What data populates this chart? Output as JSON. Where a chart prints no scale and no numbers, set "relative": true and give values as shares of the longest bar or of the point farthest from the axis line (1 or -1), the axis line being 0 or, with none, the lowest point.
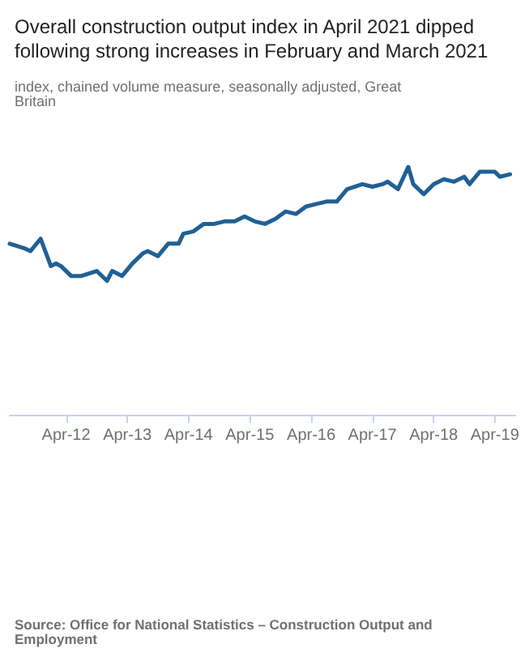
{
  "chart_data": {
    "type": "line",
    "title": "Overall construction output index in April 2021 dipped following strong increases in February and March 2021",
    "subtitle": "index, chained volume measure, seasonally adjusted, Great Britain",
    "annotations": [
      "Source: Office for National Statistics – Construction Output and Employment"
    ],
    "relative": true,
    "marker": "none",
    "line_style": "solid",
    "x": [
      "2011-05",
      "2011-08",
      "2011-09",
      "2011-11",
      "2012-01",
      "2012-02",
      "2012-03",
      "2012-05",
      "2012-07",
      "2012-10",
      "2012-12",
      "2013-01",
      "2013-03",
      "2013-05",
      "2013-07",
      "2013-08",
      "2013-10",
      "2013-12",
      "2014-02",
      "2014-03",
      "2014-05",
      "2014-07",
      "2014-09",
      "2014-11",
      "2015-01",
      "2015-03",
      "2015-05",
      "2015-07",
      "2015-09",
      "2015-11",
      "2016-01",
      "2016-03",
      "2016-05",
      "2016-07",
      "2016-09",
      "2016-11",
      "2017-02",
      "2017-04",
      "2017-06",
      "2017-07",
      "2017-09",
      "2017-11",
      "2017-12",
      "2018-02",
      "2018-04",
      "2018-06",
      "2018-08",
      "2018-10",
      "2018-11",
      "2019-01",
      "2019-03",
      "2019-04",
      "2019-05",
      "2019-07"
    ],
    "series": [
      {
        "color": "#206095",
        "values": [
          0.69,
          0.67,
          0.66,
          0.71,
          0.6,
          0.61,
          0.6,
          0.56,
          0.56,
          0.58,
          0.54,
          0.58,
          0.56,
          0.61,
          0.65,
          0.66,
          0.64,
          0.69,
          0.69,
          0.73,
          0.74,
          0.77,
          0.77,
          0.78,
          0.78,
          0.8,
          0.78,
          0.77,
          0.79,
          0.82,
          0.81,
          0.84,
          0.85,
          0.86,
          0.86,
          0.91,
          0.93,
          0.92,
          0.93,
          0.94,
          0.91,
          1,
          0.93,
          0.89,
          0.93,
          0.95,
          0.94,
          0.96,
          0.93,
          0.98,
          0.98,
          0.98,
          0.96,
          0.97
        ]
      }
    ],
    "xlim": [
      "2011-05",
      "2019-08"
    ],
    "xticks": [
      {
        "value": "2012-04",
        "label": "Apr-12"
      },
      {
        "value": "2013-04",
        "label": "Apr-13"
      },
      {
        "value": "2014-04",
        "label": "Apr-14"
      },
      {
        "value": "2015-04",
        "label": "Apr-15"
      },
      {
        "value": "2016-04",
        "label": "Apr-16"
      },
      {
        "value": "2017-04",
        "label": "Apr-17"
      },
      {
        "value": "2018-04",
        "label": "Apr-18"
      },
      {
        "value": "2019-04",
        "label": "Apr-19"
      }
    ]
  }
}
